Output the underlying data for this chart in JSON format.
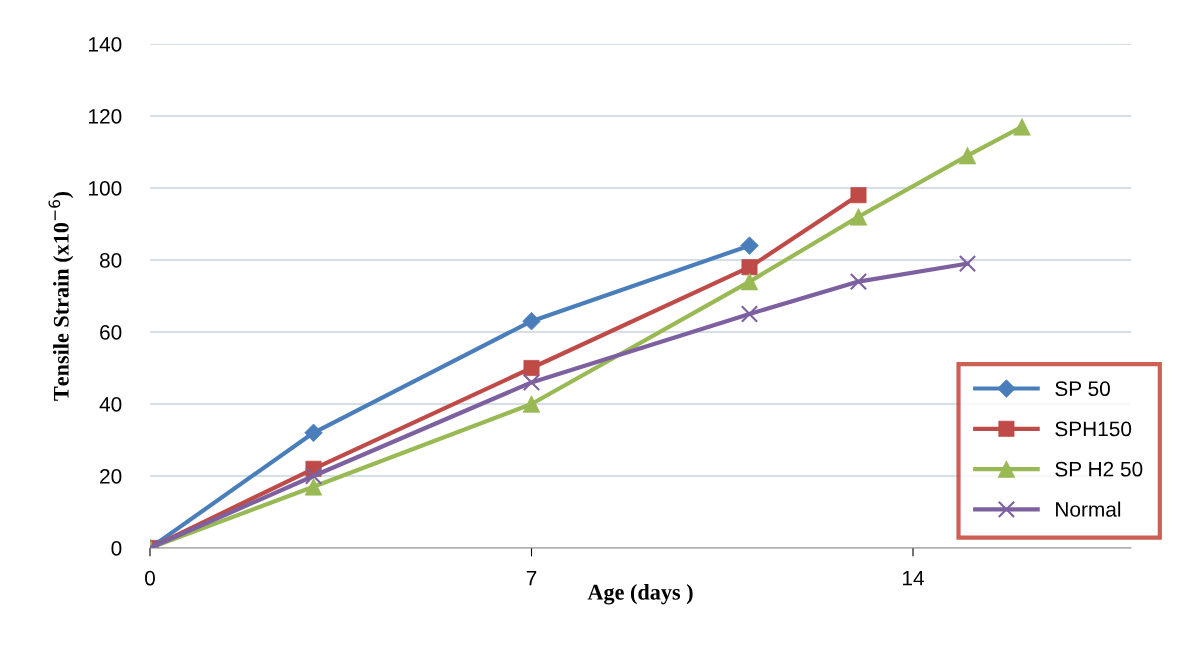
{
  "chart_data": {
    "type": "line",
    "xlabel": "Age (days )",
    "ylabel": "Tensile Strain (x10$^{−6}$)",
    "xlim": [
      0,
      18
    ],
    "xticks": [
      0,
      7,
      14
    ],
    "ylim": [
      0,
      140
    ],
    "yticks": [
      0,
      20,
      40,
      60,
      80,
      100,
      120,
      140
    ],
    "grid": "y",
    "legend": "bottom right",
    "series": [
      {
        "name": "SP 50",
        "color": "#4a7ebb",
        "marker": "diamond",
        "x": [
          0,
          3,
          7,
          11
        ],
        "values": [
          0,
          32,
          63,
          84
        ]
      },
      {
        "name": "SPH150",
        "color": "#be4b48",
        "marker": "square",
        "x": [
          0,
          3,
          7,
          11,
          13
        ],
        "values": [
          0,
          22,
          50,
          78,
          98
        ]
      },
      {
        "name": "SP H2 50",
        "color": "#98b954",
        "marker": "triangle",
        "x": [
          0,
          3,
          7,
          11,
          13,
          15,
          16
        ],
        "values": [
          0,
          17,
          40,
          74,
          92,
          109,
          117
        ]
      },
      {
        "name": "Normal",
        "color": "#7d60a0",
        "marker": "cross",
        "x": [
          0,
          3,
          7,
          11,
          13,
          15
        ],
        "values": [
          0,
          20,
          46,
          65,
          74,
          79
        ]
      }
    ]
  }
}
